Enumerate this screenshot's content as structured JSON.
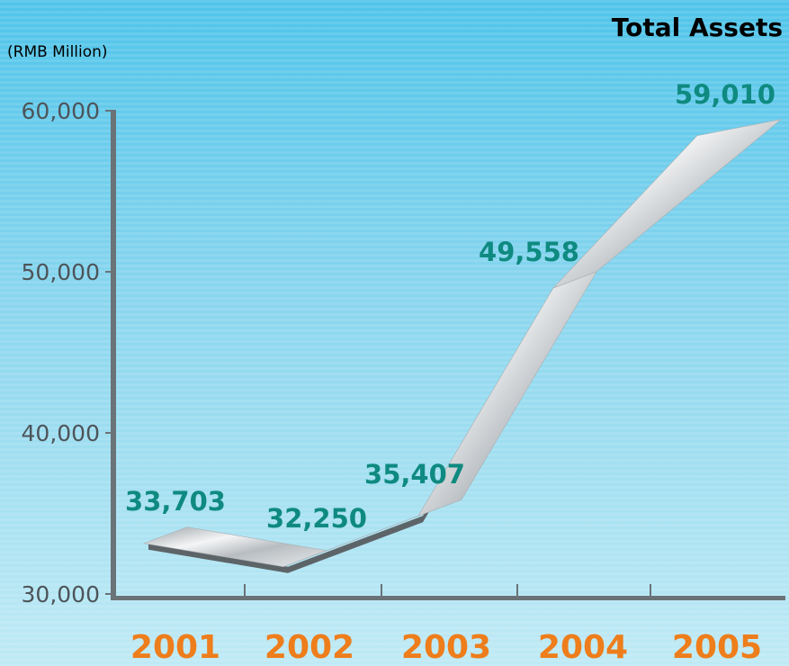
{
  "chart_data": {
    "type": "line",
    "title": "Total Assets",
    "ylabel": "(RMB Million)",
    "xlabel": "",
    "categories": [
      "2001",
      "2002",
      "2003",
      "2004",
      "2005"
    ],
    "series": [
      {
        "values": [
          33703,
          32250,
          35407,
          49558,
          59010
        ]
      }
    ],
    "value_labels": [
      "33,703",
      "32,250",
      "35,407",
      "49,558",
      "59,010"
    ],
    "ylim": [
      30000,
      60000
    ],
    "yticks": [
      30000,
      40000,
      50000,
      60000
    ],
    "ytick_labels": [
      "30,000",
      "40,000",
      "50,000",
      "60,000"
    ],
    "grid": false,
    "legend": "none",
    "colors": {
      "title": "#0f9a8c",
      "data_label": "#0f8a80",
      "year_label": "#ee7d1b",
      "axis": "#6a7378",
      "text": "#4d5459",
      "band": "#c8cdd1"
    }
  }
}
